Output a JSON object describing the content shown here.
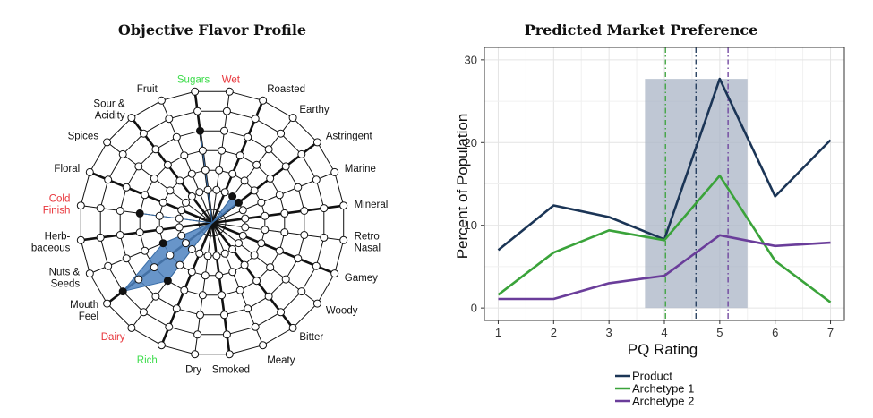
{
  "chart_data": [
    {
      "type": "radar",
      "title": "Objective Flavor Profile",
      "attributes": [
        {
          "label": [
            "Wet"
          ],
          "color": "#e8353b",
          "value": 0
        },
        {
          "label": [
            "Roasted"
          ],
          "color": "#111111",
          "value": 0
        },
        {
          "label": [
            "Earthy"
          ],
          "color": "#111111",
          "value": 1
        },
        {
          "label": [
            "Astringent"
          ],
          "color": "#111111",
          "value": 1
        },
        {
          "label": [
            "Marine"
          ],
          "color": "#111111",
          "value": 0
        },
        {
          "label": [
            "Mineral"
          ],
          "color": "#111111",
          "value": 0
        },
        {
          "label": [
            "Retro",
            "Nasal"
          ],
          "color": "#111111",
          "value": 0
        },
        {
          "label": [
            "Gamey"
          ],
          "color": "#111111",
          "value": 0
        },
        {
          "label": [
            "Woody"
          ],
          "color": "#111111",
          "value": 0
        },
        {
          "label": [
            "Bitter"
          ],
          "color": "#111111",
          "value": 0
        },
        {
          "label": [
            "Meaty"
          ],
          "color": "#111111",
          "value": 0
        },
        {
          "label": [
            "Smoked"
          ],
          "color": "#111111",
          "value": 0
        },
        {
          "label": [
            "Dry"
          ],
          "color": "#111111",
          "value": 0
        },
        {
          "label": [
            "Rich"
          ],
          "color": "#3ddc4b",
          "value": 0
        },
        {
          "label": [
            "Dairy"
          ],
          "color": "#e8353b",
          "value": 3
        },
        {
          "label": [
            "Mouth",
            "Feel"
          ],
          "color": "#111111",
          "value": 5
        },
        {
          "label": [
            "Nuts &",
            "Seeds"
          ],
          "color": "#111111",
          "value": 2
        },
        {
          "label": [
            "Herb-",
            "baceous"
          ],
          "color": "#111111",
          "value": 0
        },
        {
          "label": [
            "Cold",
            "Finish"
          ],
          "color": "#e8353b",
          "value": 3
        },
        {
          "label": [
            "Floral"
          ],
          "color": "#111111",
          "value": 0
        },
        {
          "label": [
            "Spices"
          ],
          "color": "#111111",
          "value": 0
        },
        {
          "label": [
            "Sour &",
            "Acidity"
          ],
          "color": "#111111",
          "value": 0
        },
        {
          "label": [
            "Fruit"
          ],
          "color": "#111111",
          "value": 0
        },
        {
          "label": [
            "Sugars"
          ],
          "color": "#3ddc4b",
          "value": 4
        }
      ],
      "scale_max": 6,
      "fill_color": "#4d82bf",
      "outline_color": "#3a6ea8"
    },
    {
      "type": "line",
      "title": "Predicted Market Preference",
      "xlabel": "PQ Rating",
      "ylabel": "Percent of Population",
      "x": [
        1,
        2,
        3,
        4,
        5,
        6,
        7
      ],
      "xlim": [
        0.75,
        7.25
      ],
      "ylim": [
        -1.5,
        31.5
      ],
      "xticks": [
        1,
        2,
        3,
        4,
        5,
        6,
        7
      ],
      "yticks": [
        0,
        10,
        20,
        30
      ],
      "grid": true,
      "series": [
        {
          "name": "Product",
          "color": "#1b3556",
          "values": [
            7.0,
            12.4,
            11.0,
            8.3,
            27.7,
            13.5,
            20.3
          ]
        },
        {
          "name": "Archetype 1",
          "color": "#3aa33a",
          "values": [
            1.6,
            6.7,
            9.4,
            8.2,
            16.0,
            5.7,
            0.7
          ]
        },
        {
          "name": "Archetype 2",
          "color": "#6a3d9a",
          "values": [
            1.1,
            1.1,
            3.0,
            3.9,
            8.8,
            7.5,
            7.9
          ]
        }
      ],
      "shaded_range": {
        "x": [
          3.65,
          5.5
        ],
        "y": [
          0,
          27.7
        ],
        "color": "#a9b4c5"
      },
      "vlines": [
        {
          "x": 4.02,
          "color": "#3aa33a"
        },
        {
          "x": 4.57,
          "color": "#1b3556"
        },
        {
          "x": 5.15,
          "color": "#6a3d9a"
        }
      ],
      "legend_position": "bottom-left"
    }
  ]
}
